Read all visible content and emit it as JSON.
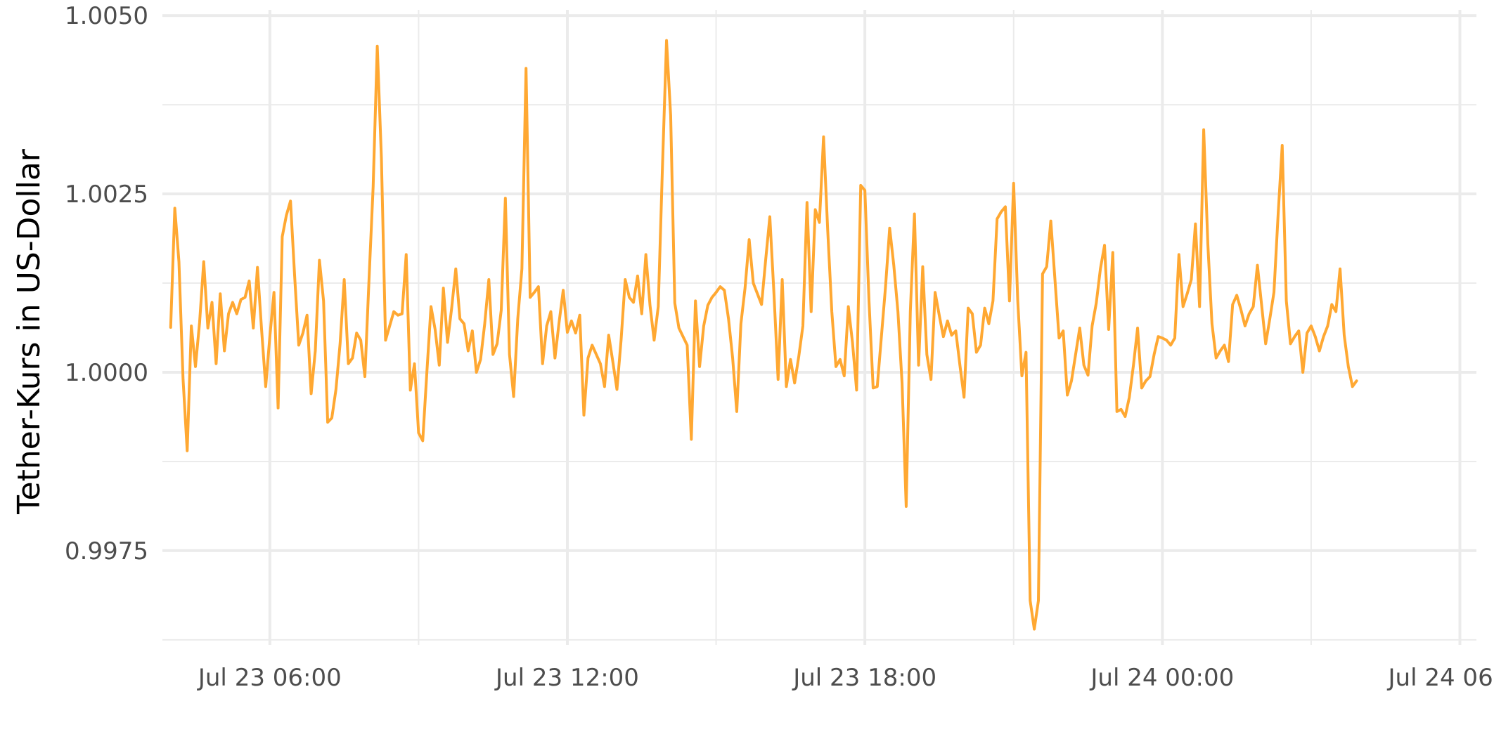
{
  "chart_data": {
    "type": "line",
    "xlabel": "",
    "ylabel": "Tether-Kurs in US-Dollar",
    "x_unit": "time",
    "x_start": "Jul 23 04:00",
    "x_step_minutes": 5,
    "xlim": [
      "Jul 23 03:50",
      "Jul 24 06:20"
    ],
    "ylim": [
      0.99618,
      1.00508
    ],
    "y_ticks": [
      0.9975,
      1.0,
      1.0025,
      1.005
    ],
    "y_tick_labels": [
      "0.9975",
      "1.0000",
      "1.0025",
      "1.0050"
    ],
    "x_ticks": [
      "Jul 23 06:00",
      "Jul 23 12:00",
      "Jul 23 18:00",
      "Jul 24 00:00",
      "Jul 24 06:00"
    ],
    "x_tick_labels": [
      "Jul 23 06:00",
      "Jul 23 12:00",
      "Jul 23 18:00",
      "Jul 24 00:00",
      "Jul 24 06:00"
    ],
    "grid": true,
    "legend": "none",
    "series": [
      {
        "color": "#FFA832",
        "values": [
          1.00063,
          1.0023,
          1.00155,
          0.9999,
          0.9989,
          1.00065,
          1.00008,
          1.0007,
          1.00155,
          1.00062,
          1.00098,
          1.00012,
          1.0011,
          1.0003,
          1.00082,
          1.00098,
          1.00082,
          1.00102,
          1.00105,
          1.00128,
          1.00062,
          1.00147,
          1.0006,
          0.9998,
          1.0005,
          1.00112,
          0.9995,
          1.0019,
          1.0022,
          1.0024,
          1.00135,
          1.00038,
          1.00055,
          1.0008,
          0.9997,
          1.0003,
          1.00157,
          1.001,
          0.9993,
          0.99936,
          0.99976,
          1.0004,
          1.0013,
          1.00012,
          1.0002,
          1.00055,
          1.00045,
          0.99994,
          1.0013,
          1.0026,
          1.00457,
          1.003,
          1.00045,
          1.00065,
          1.00085,
          1.0008,
          1.00082,
          1.00165,
          0.99975,
          1.00012,
          0.99915,
          0.99904,
          1.0,
          1.00092,
          1.0006,
          1.0001,
          1.00118,
          1.00042,
          1.0009,
          1.00145,
          1.00075,
          1.00068,
          1.0003,
          1.00058,
          1.0,
          1.00018,
          1.00068,
          1.0013,
          1.00025,
          1.0004,
          1.00087,
          1.00244,
          1.00025,
          0.99966,
          1.00075,
          1.00145,
          1.00426,
          1.00105,
          1.00112,
          1.0012,
          1.00012,
          1.00065,
          1.00085,
          1.0002,
          1.0007,
          1.00115,
          1.00056,
          1.00072,
          1.00055,
          1.0008,
          0.9994,
          1.0002,
          1.00038,
          1.00025,
          1.00012,
          0.9998,
          1.00052,
          1.00015,
          0.99976,
          1.00045,
          1.0013,
          1.00105,
          1.00098,
          1.00135,
          1.00082,
          1.00165,
          1.00094,
          1.00045,
          1.00092,
          1.00285,
          1.00465,
          1.0036,
          1.00097,
          1.00062,
          1.0005,
          1.00038,
          0.99906,
          1.001,
          1.00008,
          1.00065,
          1.00094,
          1.00105,
          1.00112,
          1.0012,
          1.00115,
          1.00075,
          1.0002,
          0.99945,
          1.00068,
          1.00118,
          1.00186,
          1.00125,
          1.0011,
          1.00095,
          1.00158,
          1.00218,
          1.0011,
          0.9999,
          1.0013,
          0.9998,
          1.00018,
          0.99985,
          1.00022,
          1.00065,
          1.00238,
          1.00085,
          1.00228,
          1.0021,
          1.0033,
          1.002,
          1.00085,
          1.00008,
          1.00018,
          0.99995,
          1.00092,
          1.00042,
          0.99975,
          1.00262,
          1.00255,
          1.001,
          0.99978,
          0.9998,
          1.0005,
          1.0012,
          1.00202,
          1.0015,
          1.00085,
          0.99985,
          0.99812,
          1.00085,
          1.00222,
          1.0001,
          1.00148,
          1.00025,
          0.9999,
          1.00112,
          1.0008,
          1.0005,
          1.00072,
          1.00052,
          1.00058,
          1.0001,
          0.99965,
          1.0009,
          1.00082,
          1.00028,
          1.00038,
          1.0009,
          1.00068,
          1.001,
          1.00215,
          1.00225,
          1.00232,
          1.001,
          1.00265,
          1.001,
          0.99995,
          1.00028,
          0.9968,
          0.9964,
          0.9968,
          1.00138,
          1.00148,
          1.00212,
          1.0013,
          1.00048,
          1.00058,
          0.99968,
          0.99988,
          1.00025,
          1.00062,
          1.0001,
          0.99996,
          1.00065,
          1.00097,
          1.00145,
          1.00178,
          1.0006,
          1.00168,
          0.99945,
          0.99948,
          0.99938,
          0.99965,
          1.0001,
          1.00062,
          0.99978,
          0.99988,
          0.99994,
          1.00025,
          1.0005,
          1.00048,
          1.00045,
          1.00038,
          1.00048,
          1.00165,
          1.00092,
          1.0011,
          1.0013,
          1.00208,
          1.00092,
          1.0034,
          1.0018,
          1.00068,
          1.0002,
          1.0003,
          1.00038,
          1.00015,
          1.00095,
          1.00108,
          1.00088,
          1.00065,
          1.00082,
          1.00092,
          1.0015,
          1.00095,
          1.0004,
          1.00075,
          1.00112,
          1.0022,
          1.00318,
          1.001,
          1.0004,
          1.0005,
          1.00058,
          1.0,
          1.00055,
          1.00065,
          1.0005,
          1.0003,
          1.0005,
          1.00065,
          1.00095,
          1.00085,
          1.00145,
          1.00052,
          1.00008,
          0.9998,
          0.99988
        ]
      }
    ]
  }
}
